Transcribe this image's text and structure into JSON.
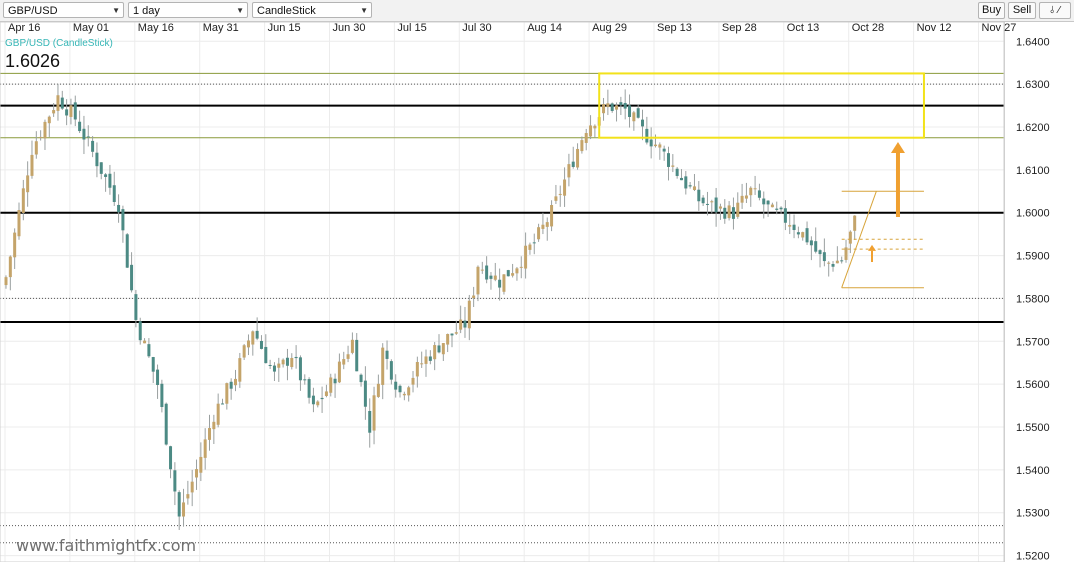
{
  "toolbar": {
    "symbol": "GBP/USD",
    "timeframe": "1 day",
    "chart_type": "CandleStick",
    "buy_label": "Buy",
    "sell_label": "Sell"
  },
  "chart_data": {
    "type": "candlestick",
    "series_label": "GBP/USD (CandleStick)",
    "last_price": "1.6026",
    "watermark": "www.faithmightfx.com",
    "x_tick_labels": [
      "Apr 16",
      "May 01",
      "May 16",
      "May 31",
      "Jun 15",
      "Jun 30",
      "Jul 15",
      "Jul 30",
      "Aug 14",
      "Aug 29",
      "Sep 13",
      "Sep 28",
      "Oct 13",
      "Oct 28",
      "Nov 12",
      "Nov 27"
    ],
    "y_ticks": [
      "1.6400",
      "1.6300",
      "1.6200",
      "1.6100",
      "1.6000",
      "1.5900",
      "1.5800",
      "1.5700",
      "1.5600",
      "1.5500",
      "1.5400",
      "1.5300",
      "1.5200"
    ],
    "ylim": [
      1.5185,
      1.6445
    ],
    "close_path": [
      [
        0,
        1.585
      ],
      [
        6,
        1.615
      ],
      [
        12,
        1.627
      ],
      [
        16,
        1.622
      ],
      [
        21,
        1.612
      ],
      [
        26,
        1.602
      ],
      [
        30,
        1.575
      ],
      [
        35,
        1.56
      ],
      [
        40,
        1.529
      ],
      [
        44,
        1.54
      ],
      [
        48,
        1.553
      ],
      [
        53,
        1.562
      ],
      [
        57,
        1.573
      ],
      [
        62,
        1.562
      ],
      [
        66,
        1.567
      ],
      [
        71,
        1.554
      ],
      [
        75,
        1.56
      ],
      [
        80,
        1.57
      ],
      [
        84,
        1.55
      ],
      [
        87,
        1.568
      ],
      [
        91,
        1.558
      ],
      [
        96,
        1.565
      ],
      [
        101,
        1.57
      ],
      [
        106,
        1.574
      ],
      [
        108,
        1.582
      ],
      [
        109,
        1.588
      ],
      [
        114,
        1.584
      ],
      [
        118,
        1.588
      ],
      [
        122,
        1.593
      ],
      [
        126,
        1.6
      ],
      [
        130,
        1.61
      ],
      [
        134,
        1.62
      ],
      [
        139,
        1.625
      ],
      [
        143,
        1.624
      ],
      [
        147,
        1.619
      ],
      [
        151,
        1.615
      ],
      [
        156,
        1.608
      ],
      [
        160,
        1.603
      ],
      [
        164,
        1.601
      ],
      [
        168,
        1.6
      ],
      [
        172,
        1.605
      ],
      [
        177,
        1.6
      ],
      [
        181,
        1.598
      ],
      [
        185,
        1.594
      ],
      [
        189,
        1.588
      ],
      [
        193,
        1.589
      ],
      [
        196,
        1.598
      ]
    ],
    "horizontal_levels": {
      "major": [
        1.625,
        1.6,
        1.5745
      ],
      "minor_dotted": [
        1.63,
        1.58,
        1.527,
        1.523
      ],
      "olive": [
        1.6325,
        1.6175
      ]
    },
    "annotations": {
      "resistance_box": {
        "x_from": 137,
        "x_to": 212,
        "y_from": 1.6175,
        "y_to": 1.6325,
        "color": "#f2e21a"
      },
      "wedge": {
        "x_from": 193,
        "x_to": 212,
        "upper_start": 1.5825,
        "upper_end": 1.605,
        "lower": 1.5825
      },
      "targets": [
        1.5915,
        1.5938
      ],
      "arrows": [
        {
          "x": 206,
          "from": 1.599,
          "to": 1.6165,
          "big": true
        },
        {
          "x": 200,
          "from": 1.5885,
          "to": 1.5925,
          "big": false
        }
      ],
      "color": "#d7a43a",
      "arrow_color": "#f0a030"
    },
    "colors": {
      "up": "#c4a46a",
      "down": "#4c8a84",
      "wick": "#9aa0a0"
    },
    "grid": true,
    "price_axis_side": "right"
  }
}
